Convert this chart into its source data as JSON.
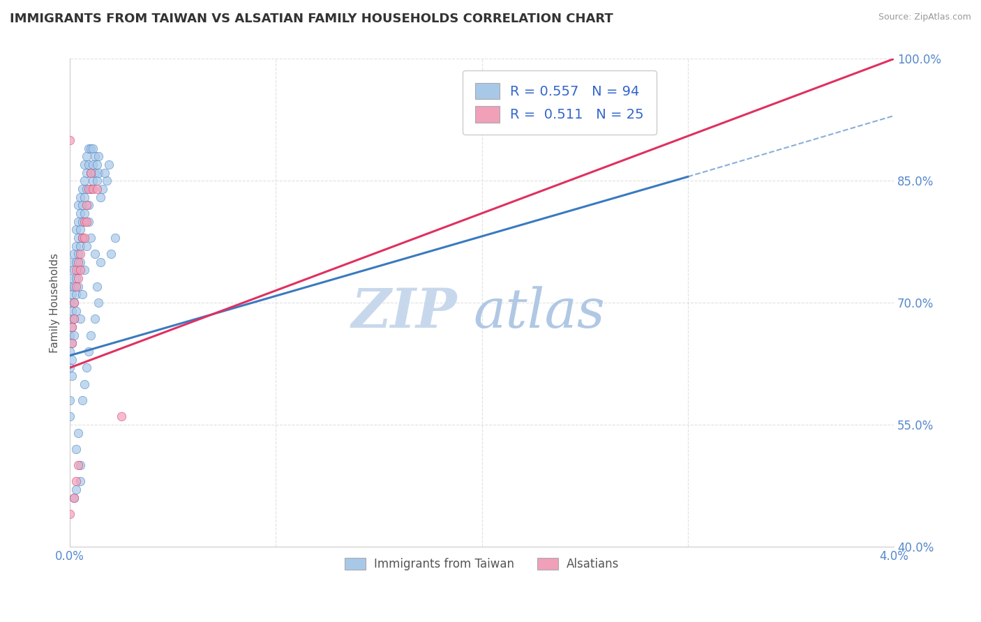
{
  "title": "IMMIGRANTS FROM TAIWAN VS ALSATIAN FAMILY HOUSEHOLDS CORRELATION CHART",
  "source": "Source: ZipAtlas.com",
  "ylabel": "Family Households",
  "legend_labels": [
    "Immigrants from Taiwan",
    "Alsatians"
  ],
  "R1": 0.557,
  "N1": 94,
  "R2": 0.511,
  "N2": 25,
  "xlim": [
    0.0,
    0.04
  ],
  "ylim": [
    0.4,
    1.0
  ],
  "xticks": [
    0.0,
    0.01,
    0.02,
    0.03,
    0.04
  ],
  "xticklabels": [
    "0.0%",
    "",
    "",
    "",
    "4.0%"
  ],
  "yticks": [
    0.4,
    0.55,
    0.7,
    0.85,
    1.0
  ],
  "yticklabels": [
    "40.0%",
    "55.0%",
    "70.0%",
    "85.0%",
    "100.0%"
  ],
  "color_blue": "#a8c8e8",
  "color_pink": "#f0a0b8",
  "trendline_blue": "#3a7abf",
  "trendline_pink": "#e03060",
  "watermark_zip_color": "#c8d8ec",
  "watermark_atlas_color": "#b0c8e4",
  "title_color": "#333333",
  "axis_label_color": "#555555",
  "tick_label_color": "#5588cc",
  "source_color": "#999999",
  "grid_color": "#dddddd",
  "legend_R_color": "#3366cc",
  "blue_scatter": [
    [
      0.0,
      0.64
    ],
    [
      0.0,
      0.62
    ],
    [
      0.0,
      0.66
    ],
    [
      0.0,
      0.68
    ],
    [
      0.0,
      0.7
    ],
    [
      0.0,
      0.72
    ],
    [
      0.0,
      0.58
    ],
    [
      0.0,
      0.56
    ],
    [
      0.0,
      0.73
    ],
    [
      0.0,
      0.75
    ],
    [
      0.0001,
      0.65
    ],
    [
      0.0001,
      0.67
    ],
    [
      0.0001,
      0.69
    ],
    [
      0.0001,
      0.71
    ],
    [
      0.0001,
      0.63
    ],
    [
      0.0001,
      0.61
    ],
    [
      0.0002,
      0.66
    ],
    [
      0.0002,
      0.68
    ],
    [
      0.0002,
      0.7
    ],
    [
      0.0002,
      0.72
    ],
    [
      0.0002,
      0.74
    ],
    [
      0.0002,
      0.76
    ],
    [
      0.0003,
      0.69
    ],
    [
      0.0003,
      0.71
    ],
    [
      0.0003,
      0.73
    ],
    [
      0.0003,
      0.75
    ],
    [
      0.0003,
      0.77
    ],
    [
      0.0003,
      0.79
    ],
    [
      0.0004,
      0.72
    ],
    [
      0.0004,
      0.74
    ],
    [
      0.0004,
      0.76
    ],
    [
      0.0004,
      0.78
    ],
    [
      0.0004,
      0.8
    ],
    [
      0.0004,
      0.82
    ],
    [
      0.0005,
      0.75
    ],
    [
      0.0005,
      0.77
    ],
    [
      0.0005,
      0.79
    ],
    [
      0.0005,
      0.81
    ],
    [
      0.0005,
      0.83
    ],
    [
      0.0005,
      0.68
    ],
    [
      0.0006,
      0.78
    ],
    [
      0.0006,
      0.8
    ],
    [
      0.0006,
      0.82
    ],
    [
      0.0006,
      0.84
    ],
    [
      0.0006,
      0.71
    ],
    [
      0.0007,
      0.81
    ],
    [
      0.0007,
      0.83
    ],
    [
      0.0007,
      0.85
    ],
    [
      0.0007,
      0.87
    ],
    [
      0.0007,
      0.74
    ],
    [
      0.0008,
      0.84
    ],
    [
      0.0008,
      0.86
    ],
    [
      0.0008,
      0.88
    ],
    [
      0.0008,
      0.77
    ],
    [
      0.0009,
      0.87
    ],
    [
      0.0009,
      0.89
    ],
    [
      0.0009,
      0.8
    ],
    [
      0.0009,
      0.82
    ],
    [
      0.001,
      0.89
    ],
    [
      0.001,
      0.84
    ],
    [
      0.001,
      0.86
    ],
    [
      0.001,
      0.78
    ],
    [
      0.0011,
      0.89
    ],
    [
      0.0011,
      0.87
    ],
    [
      0.0011,
      0.85
    ],
    [
      0.0012,
      0.88
    ],
    [
      0.0012,
      0.86
    ],
    [
      0.0012,
      0.76
    ],
    [
      0.0013,
      0.87
    ],
    [
      0.0013,
      0.85
    ],
    [
      0.0014,
      0.88
    ],
    [
      0.0014,
      0.86
    ],
    [
      0.0005,
      0.48
    ],
    [
      0.0005,
      0.5
    ],
    [
      0.0003,
      0.47
    ],
    [
      0.0002,
      0.46
    ],
    [
      0.002,
      0.76
    ],
    [
      0.0022,
      0.78
    ],
    [
      0.0015,
      0.83
    ],
    [
      0.0016,
      0.84
    ],
    [
      0.0018,
      0.85
    ],
    [
      0.0008,
      0.62
    ],
    [
      0.0007,
      0.6
    ],
    [
      0.0006,
      0.58
    ],
    [
      0.0004,
      0.54
    ],
    [
      0.0003,
      0.52
    ],
    [
      0.0009,
      0.64
    ],
    [
      0.001,
      0.66
    ],
    [
      0.0012,
      0.68
    ],
    [
      0.0014,
      0.7
    ],
    [
      0.0013,
      0.72
    ],
    [
      0.0015,
      0.75
    ],
    [
      0.0017,
      0.86
    ],
    [
      0.0019,
      0.87
    ]
  ],
  "pink_scatter": [
    [
      0.0,
      0.9
    ],
    [
      0.0001,
      0.65
    ],
    [
      0.0001,
      0.67
    ],
    [
      0.0002,
      0.68
    ],
    [
      0.0002,
      0.7
    ],
    [
      0.0003,
      0.72
    ],
    [
      0.0003,
      0.74
    ],
    [
      0.0004,
      0.75
    ],
    [
      0.0004,
      0.73
    ],
    [
      0.0005,
      0.76
    ],
    [
      0.0005,
      0.74
    ],
    [
      0.0006,
      0.78
    ],
    [
      0.0007,
      0.8
    ],
    [
      0.0007,
      0.78
    ],
    [
      0.0008,
      0.82
    ],
    [
      0.0008,
      0.8
    ],
    [
      0.0009,
      0.84
    ],
    [
      0.001,
      0.86
    ],
    [
      0.0011,
      0.84
    ],
    [
      0.0003,
      0.48
    ],
    [
      0.0004,
      0.5
    ],
    [
      0.0002,
      0.46
    ],
    [
      0.0013,
      0.84
    ],
    [
      0.0025,
      0.56
    ],
    [
      0.0,
      0.44
    ]
  ],
  "blue_trendline": [
    [
      0.0,
      0.635
    ],
    [
      0.03,
      0.855
    ]
  ],
  "pink_trendline": [
    [
      0.0,
      0.62
    ],
    [
      0.04,
      1.0
    ]
  ],
  "blue_trendline_dashed": [
    [
      0.03,
      0.855
    ],
    [
      0.04,
      0.93
    ]
  ]
}
